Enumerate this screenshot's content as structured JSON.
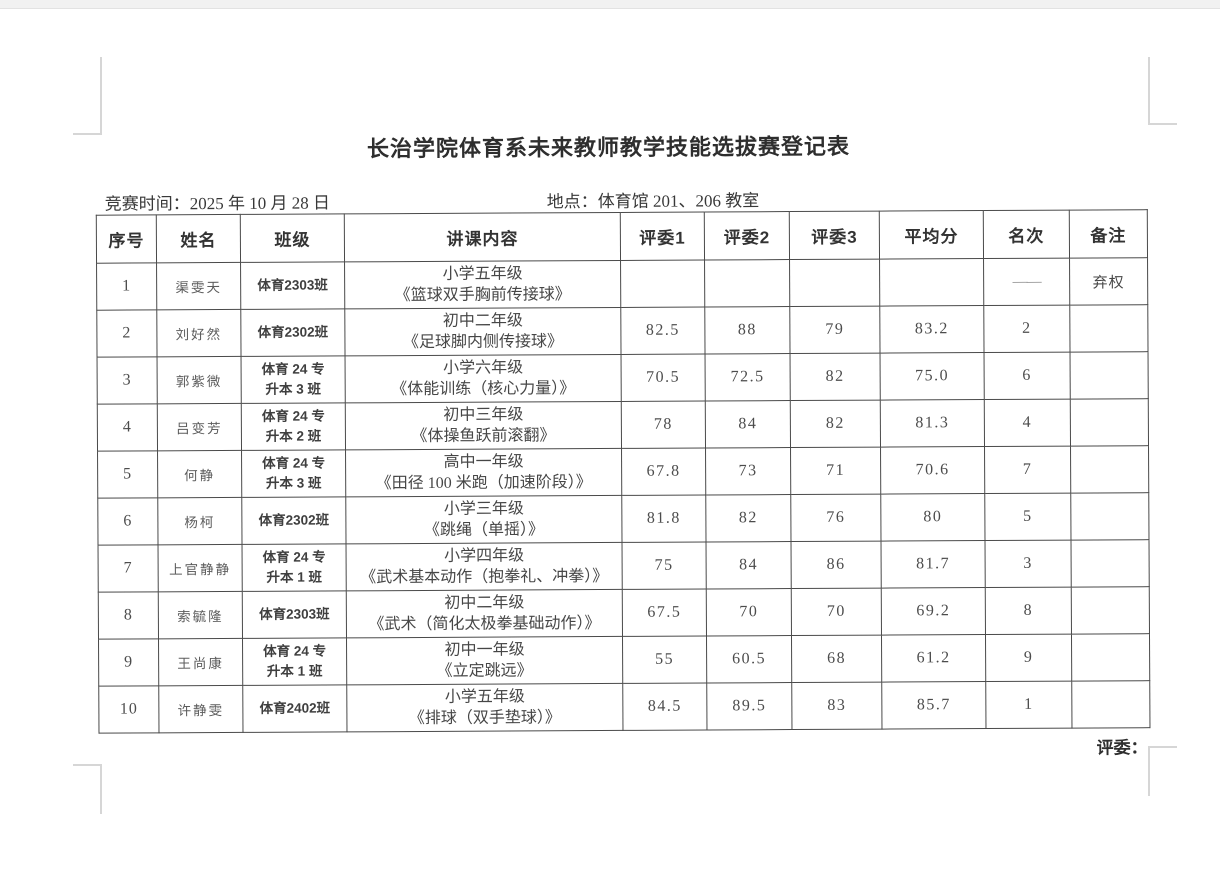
{
  "document": {
    "title": "长治学院体育系未来教师教学技能选拔赛登记表",
    "competition_time": "竞赛时间：2025 年 10 月 28 日",
    "location": "地点：体育馆 201、206 教室",
    "judges_signature_label": "评委："
  },
  "table": {
    "headers": [
      "序号",
      "姓名",
      "班级",
      "讲课内容",
      "评委1",
      "评委2",
      "评委3",
      "平均分",
      "名次",
      "备注"
    ],
    "rows": [
      {
        "no": "1",
        "name": "渠雯天",
        "class1": "体育2303班",
        "class2": "",
        "content1": "小学五年级",
        "content2": "《篮球双手胸前传接球》",
        "j1": "",
        "j2": "",
        "j3": "",
        "avg": "",
        "rank": "——",
        "note": "弃权"
      },
      {
        "no": "2",
        "name": "刘好然",
        "class1": "体育2302班",
        "class2": "",
        "content1": "初中二年级",
        "content2": "《足球脚内侧传接球》",
        "j1": "82.5",
        "j2": "88",
        "j3": "79",
        "avg": "83.2",
        "rank": "2",
        "note": ""
      },
      {
        "no": "3",
        "name": "郭紫微",
        "class1": "体育 24 专",
        "class2": "升本 3 班",
        "content1": "小学六年级",
        "content2": "《体能训练（核心力量）》",
        "j1": "70.5",
        "j2": "72.5",
        "j3": "82",
        "avg": "75.0",
        "rank": "6",
        "note": ""
      },
      {
        "no": "4",
        "name": "吕变芳",
        "class1": "体育 24 专",
        "class2": "升本 2 班",
        "content1": "初中三年级",
        "content2": "《体操鱼跃前滚翻》",
        "j1": "78",
        "j2": "84",
        "j3": "82",
        "avg": "81.3",
        "rank": "4",
        "note": ""
      },
      {
        "no": "5",
        "name": "何静",
        "class1": "体育 24 专",
        "class2": "升本 3 班",
        "content1": "高中一年级",
        "content2": "《田径 100 米跑（加速阶段）》",
        "j1": "67.8",
        "j2": "73",
        "j3": "71",
        "avg": "70.6",
        "rank": "7",
        "note": ""
      },
      {
        "no": "6",
        "name": "杨柯",
        "class1": "体育2302班",
        "class2": "",
        "content1": "小学三年级",
        "content2": "《跳绳（单摇）》",
        "j1": "81.8",
        "j2": "82",
        "j3": "76",
        "avg": "80",
        "rank": "5",
        "note": ""
      },
      {
        "no": "7",
        "name": "上官静静",
        "class1": "体育 24 专",
        "class2": "升本 1 班",
        "content1": "小学四年级",
        "content2": "《武术基本动作（抱拳礼、冲拳）》",
        "j1": "75",
        "j2": "84",
        "j3": "86",
        "avg": "81.7",
        "rank": "3",
        "note": ""
      },
      {
        "no": "8",
        "name": "索毓隆",
        "class1": "体育2303班",
        "class2": "",
        "content1": "初中二年级",
        "content2": "《武术（简化太极拳基础动作）》",
        "j1": "67.5",
        "j2": "70",
        "j3": "70",
        "avg": "69.2",
        "rank": "8",
        "note": ""
      },
      {
        "no": "9",
        "name": "王尚康",
        "class1": "体育 24 专",
        "class2": "升本 1 班",
        "content1": "初中一年级",
        "content2": "《立定跳远》",
        "j1": "55",
        "j2": "60.5",
        "j3": "68",
        "avg": "61.2",
        "rank": "9",
        "note": ""
      },
      {
        "no": "10",
        "name": "许静雯",
        "class1": "体育2402班",
        "class2": "",
        "content1": "小学五年级",
        "content2": "《排球（双手垫球）》",
        "j1": "84.5",
        "j2": "89.5",
        "j3": "83",
        "avg": "85.7",
        "rank": "1",
        "note": ""
      }
    ]
  }
}
